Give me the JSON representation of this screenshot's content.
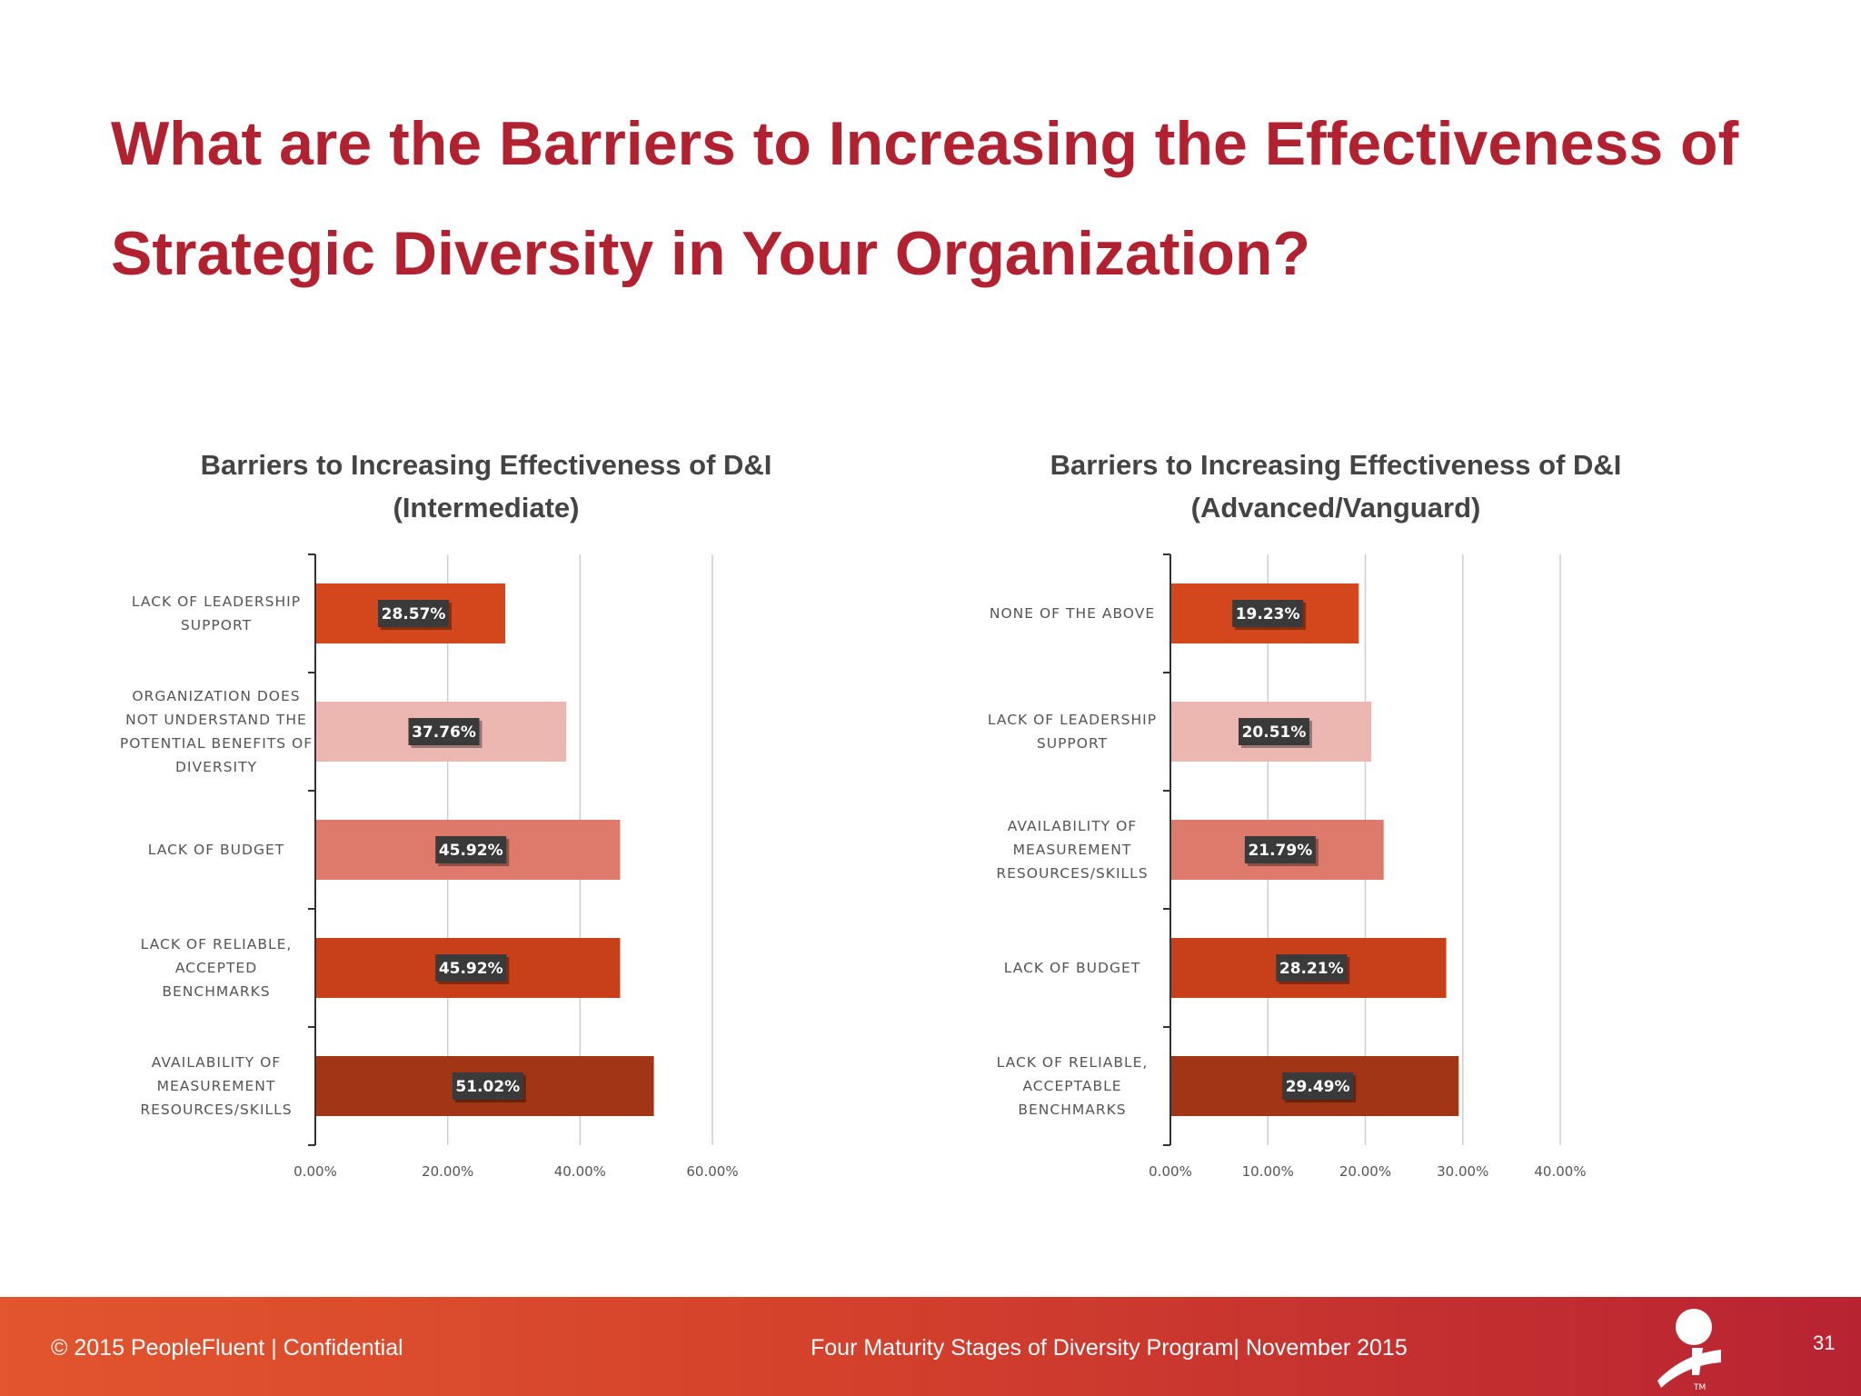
{
  "slide": {
    "title": "What are the Barriers to Increasing the Effectiveness of Strategic Diversity in Your Organization?"
  },
  "footer": {
    "left_text": "© 2015 PeopleFluent | Confidential",
    "center_text": "Four Maturity Stages of Diversity Program| November 2015",
    "page_number": "31",
    "logo_mark": "TM"
  },
  "colors": {
    "title": "#b22130",
    "bar_orange": "#d4471c",
    "bar_light": "#ebb7b0",
    "bar_salmon": "#dd7a6c",
    "bar_mid": "#c8401a",
    "bar_dark": "#a23515",
    "label_box": "#3a3a3a"
  },
  "chart_data": [
    {
      "type": "bar",
      "orientation": "horizontal",
      "title_lines": [
        "Barriers to Increasing Effectiveness of  D&I",
        "(Intermediate)"
      ],
      "categories": [
        [
          "LACK OF LEADERSHIP",
          "SUPPORT"
        ],
        [
          "ORGANIZATION DOES",
          "NOT UNDERSTAND THE",
          "POTENTIAL BENEFITS OF",
          "DIVERSITY"
        ],
        [
          "LACK OF BUDGET"
        ],
        [
          "LACK OF RELIABLE,",
          "ACCEPTED",
          "BENCHMARKS"
        ],
        [
          "AVAILABILITY OF",
          "MEASUREMENT",
          "RESOURCES/SKILLS"
        ]
      ],
      "values": [
        28.57,
        37.76,
        45.92,
        45.92,
        51.02
      ],
      "value_labels": [
        "28.57%",
        "37.76%",
        "45.92%",
        "45.92%",
        "51.02%"
      ],
      "bar_colors": [
        "#d4471c",
        "#ebb7b0",
        "#dd7a6c",
        "#c8401a",
        "#a23515"
      ],
      "xlim": [
        0,
        60
      ],
      "xticks": [
        "0.00%",
        "20.00%",
        "40.00%",
        "60.00%"
      ],
      "grid": true
    },
    {
      "type": "bar",
      "orientation": "horizontal",
      "title_lines": [
        "Barriers to Increasing Effectiveness of  D&I",
        "(Advanced/Vanguard)"
      ],
      "categories": [
        [
          "NONE OF THE ABOVE"
        ],
        [
          "LACK OF LEADERSHIP",
          "SUPPORT"
        ],
        [
          "AVAILABILITY OF",
          "MEASUREMENT",
          "RESOURCES/SKILLS"
        ],
        [
          "LACK OF BUDGET"
        ],
        [
          "LACK OF RELIABLE,",
          "ACCEPTABLE",
          "BENCHMARKS"
        ]
      ],
      "values": [
        19.23,
        20.51,
        21.79,
        28.21,
        29.49
      ],
      "value_labels": [
        "19.23%",
        "20.51%",
        "21.79%",
        "28.21%",
        "29.49%"
      ],
      "bar_colors": [
        "#d4471c",
        "#ebb7b0",
        "#dd7a6c",
        "#c8401a",
        "#a23515"
      ],
      "xlim": [
        0,
        40
      ],
      "xticks": [
        "0.00%",
        "10.00%",
        "20.00%",
        "30.00%",
        "40.00%"
      ],
      "grid": true
    }
  ]
}
